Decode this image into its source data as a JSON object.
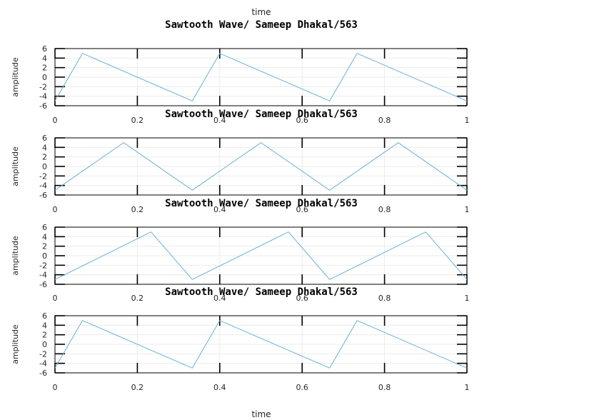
{
  "colors": {
    "line": "#6aaed6",
    "grid": "#ebebeb",
    "axis": "#000000",
    "background": "#ffffff"
  },
  "top_label": "time",
  "bottom_label": "time",
  "chart_data": [
    {
      "type": "line",
      "title": "Sawtooth Wave/ Sameep Dhakal/563",
      "ylabel": "amplitude",
      "xlim": [
        0,
        1
      ],
      "ylim": [
        -6,
        6
      ],
      "xticks": [
        0,
        0.2,
        0.4,
        0.6,
        0.8,
        1
      ],
      "yticks": [
        6,
        4,
        2,
        0,
        -2,
        -4,
        -6
      ],
      "grid": true,
      "series": [
        {
          "x": [
            0,
            0.0667,
            0.3333,
            0.4,
            0.6667,
            0.7333,
            1.0
          ],
          "y": [
            -5,
            5,
            -5,
            5,
            -5,
            5,
            -5
          ]
        }
      ]
    },
    {
      "type": "line",
      "title": "Sawtooth Wave/ Sameep Dhakal/563",
      "ylabel": "amplitude",
      "xlim": [
        0,
        1
      ],
      "ylim": [
        -6,
        6
      ],
      "xticks": [
        0,
        0.2,
        0.4,
        0.6,
        0.8,
        1
      ],
      "yticks": [
        6,
        4,
        2,
        0,
        -2,
        -4,
        -6
      ],
      "grid": true,
      "series": [
        {
          "x": [
            0,
            0.1667,
            0.3333,
            0.5,
            0.6667,
            0.8333,
            1.0
          ],
          "y": [
            -5,
            5,
            -5,
            5,
            -5,
            5,
            -5
          ]
        }
      ]
    },
    {
      "type": "line",
      "title": "Sawtooth Wave/ Sameep Dhakal/563",
      "ylabel": "amplitude",
      "xlim": [
        0,
        1
      ],
      "ylim": [
        -6,
        6
      ],
      "xticks": [
        0,
        0.2,
        0.4,
        0.6,
        0.8,
        1
      ],
      "yticks": [
        6,
        4,
        2,
        0,
        -2,
        -4,
        -6
      ],
      "grid": true,
      "series": [
        {
          "x": [
            0,
            0.2333,
            0.3333,
            0.5667,
            0.6667,
            0.9,
            1.0
          ],
          "y": [
            -5,
            5,
            -5,
            5,
            -5,
            5,
            -5
          ]
        }
      ]
    },
    {
      "type": "line",
      "title": "Sawtooth Wave/ Sameep Dhakal/563",
      "ylabel": "amplitude",
      "xlim": [
        0,
        1
      ],
      "ylim": [
        -6,
        6
      ],
      "xticks": [
        0,
        0.2,
        0.4,
        0.6,
        0.8,
        1
      ],
      "yticks": [
        6,
        4,
        2,
        0,
        -2,
        -4,
        -6
      ],
      "grid": true,
      "series": [
        {
          "x": [
            0,
            0.0667,
            0.3333,
            0.4,
            0.6667,
            0.7333,
            1.0
          ],
          "y": [
            -5,
            5,
            -5,
            5,
            -5,
            5,
            -5
          ]
        }
      ]
    }
  ]
}
